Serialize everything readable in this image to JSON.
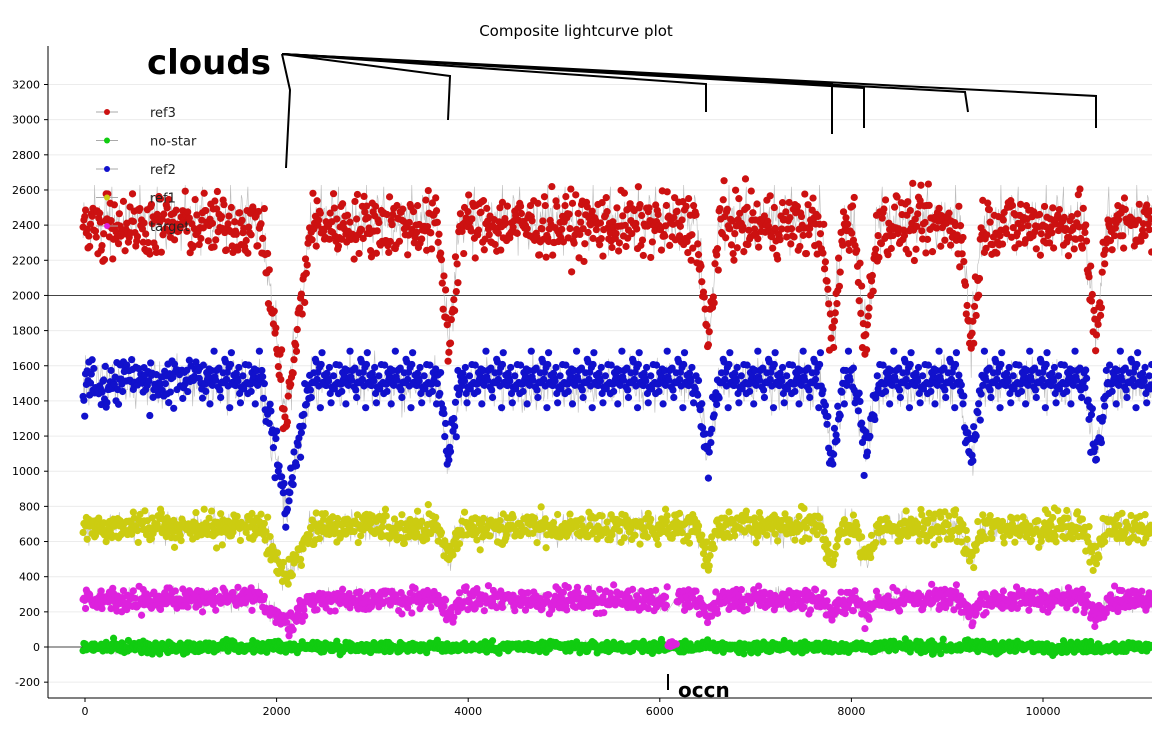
{
  "chart_data": {
    "type": "scatter",
    "title": "Composite lightcurve plot",
    "xlabel": "",
    "ylabel": "",
    "xlim": [
      -300,
      11200
    ],
    "ylim": [
      -250,
      3450
    ],
    "x_ticks": [
      0,
      2000,
      4000,
      6000,
      8000,
      10000
    ],
    "y_ticks": [
      -200,
      0,
      200,
      400,
      600,
      800,
      1000,
      1200,
      1400,
      1600,
      1800,
      2000,
      2200,
      2400,
      2600,
      2800,
      3000,
      3200
    ],
    "grid": "horizontal lines at 0 and 2000",
    "legend_position": "top-left",
    "series": [
      {
        "name": "ref3",
        "color": "#cc1111",
        "mean_approx": 2400,
        "spread_approx": 500
      },
      {
        "name": "no-star",
        "color": "#11cc11",
        "mean_approx": 0,
        "spread_approx": 90
      },
      {
        "name": "ref2",
        "color": "#1111cc",
        "mean_approx": 1500,
        "spread_approx": 400
      },
      {
        "name": "ref1",
        "color": "#cccc11",
        "mean_approx": 680,
        "spread_approx": 250
      },
      {
        "name": "target",
        "color": "#dd22dd",
        "mean_approx": 270,
        "spread_approx": 180
      }
    ],
    "annotations": [
      {
        "text": "clouds",
        "points_to_x": [
          2100,
          3800,
          6500,
          7800,
          8150,
          9250,
          10550
        ]
      },
      {
        "text": "occn",
        "points_to_x": [
          6100
        ]
      }
    ]
  }
}
